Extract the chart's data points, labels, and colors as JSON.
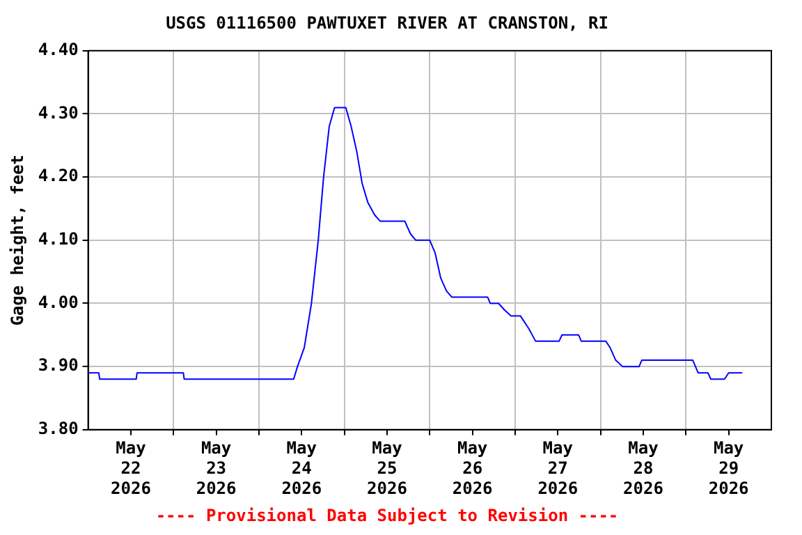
{
  "chart_data": {
    "type": "line",
    "title": "USGS 01116500 PAWTUXET RIVER AT CRANSTON, RI",
    "ylabel": "Gage height, feet",
    "annotations": [
      "---- Provisional Data Subject to Revision ----"
    ],
    "x": [
      "2026-05-22T00:00",
      "2026-05-22T03:00",
      "2026-05-22T03:15",
      "2026-05-22T13:30",
      "2026-05-22T13:45",
      "2026-05-23T02:45",
      "2026-05-23T03:00",
      "2026-05-24T09:45",
      "2026-05-24T10:50",
      "2026-05-24T12:45",
      "2026-05-24T14:45",
      "2026-05-24T16:40",
      "2026-05-24T18:10",
      "2026-05-24T19:45",
      "2026-05-24T21:15",
      "2026-05-25T00:25",
      "2026-05-25T01:55",
      "2026-05-25T03:30",
      "2026-05-25T05:00",
      "2026-05-25T06:35",
      "2026-05-25T08:30",
      "2026-05-25T10:05",
      "2026-05-25T17:00",
      "2026-05-25T18:35",
      "2026-05-25T20:05",
      "2026-05-26T00:00",
      "2026-05-26T01:30",
      "2026-05-26T03:05",
      "2026-05-26T04:40",
      "2026-05-26T06:10",
      "2026-05-26T16:15",
      "2026-05-26T17:00",
      "2026-05-26T19:20",
      "2026-05-26T20:55",
      "2026-05-26T22:50",
      "2026-05-27T01:30",
      "2026-05-27T03:50",
      "2026-05-27T05:45",
      "2026-05-27T12:20",
      "2026-05-27T13:10",
      "2026-05-27T17:50",
      "2026-05-27T18:35",
      "2026-05-28T01:30",
      "2026-05-28T02:40",
      "2026-05-28T04:15",
      "2026-05-28T06:10",
      "2026-05-28T10:50",
      "2026-05-28T11:35",
      "2026-05-29T01:55",
      "2026-05-29T03:25",
      "2026-05-29T06:10",
      "2026-05-29T07:00",
      "2026-05-29T10:50",
      "2026-05-29T12:00",
      "2026-05-29T15:50"
    ],
    "series": [
      {
        "color": "#0000ff",
        "values": [
          3.89,
          3.89,
          3.88,
          3.88,
          3.89,
          3.89,
          3.88,
          3.88,
          3.9,
          3.93,
          4.0,
          4.1,
          4.2,
          4.28,
          4.31,
          4.31,
          4.28,
          4.24,
          4.19,
          4.16,
          4.14,
          4.13,
          4.13,
          4.11,
          4.1,
          4.1,
          4.08,
          4.04,
          4.02,
          4.01,
          4.01,
          4.0,
          4.0,
          3.99,
          3.98,
          3.98,
          3.96,
          3.94,
          3.94,
          3.95,
          3.95,
          3.94,
          3.94,
          3.93,
          3.91,
          3.9,
          3.9,
          3.91,
          3.91,
          3.89,
          3.89,
          3.88,
          3.88,
          3.89,
          3.89
        ]
      }
    ],
    "xlim": [
      "2026-05-22T00:00",
      "2026-05-30T00:00"
    ],
    "xticks": [
      {
        "value": "2026-05-22T12:00",
        "label": "May 22 2026"
      },
      {
        "value": "2026-05-23T00:00",
        "label": null
      },
      {
        "value": "2026-05-23T12:00",
        "label": "May 23 2026"
      },
      {
        "value": "2026-05-24T00:00",
        "label": null
      },
      {
        "value": "2026-05-24T12:00",
        "label": "May 24 2026"
      },
      {
        "value": "2026-05-25T00:00",
        "label": null
      },
      {
        "value": "2026-05-25T12:00",
        "label": "May 25 2026"
      },
      {
        "value": "2026-05-26T00:00",
        "label": null
      },
      {
        "value": "2026-05-26T12:00",
        "label": "May 26 2026"
      },
      {
        "value": "2026-05-27T00:00",
        "label": null
      },
      {
        "value": "2026-05-27T12:00",
        "label": "May 27 2026"
      },
      {
        "value": "2026-05-28T00:00",
        "label": null
      },
      {
        "value": "2026-05-28T12:00",
        "label": "May 28 2026"
      },
      {
        "value": "2026-05-29T00:00",
        "label": null
      },
      {
        "value": "2026-05-29T12:00",
        "label": "May 29 2026"
      }
    ],
    "ylim": [
      3.8,
      4.4
    ],
    "yticks": [
      {
        "value": 3.8,
        "label": "3.80"
      },
      {
        "value": 3.9,
        "label": "3.90"
      },
      {
        "value": 4.0,
        "label": "4.00"
      },
      {
        "value": 4.1,
        "label": "4.10"
      },
      {
        "value": 4.2,
        "label": "4.20"
      },
      {
        "value": 4.3,
        "label": "4.30"
      },
      {
        "value": 4.4,
        "label": "4.40"
      }
    ],
    "grid": true,
    "legend": false,
    "marker": "none",
    "line_style": "solid"
  }
}
